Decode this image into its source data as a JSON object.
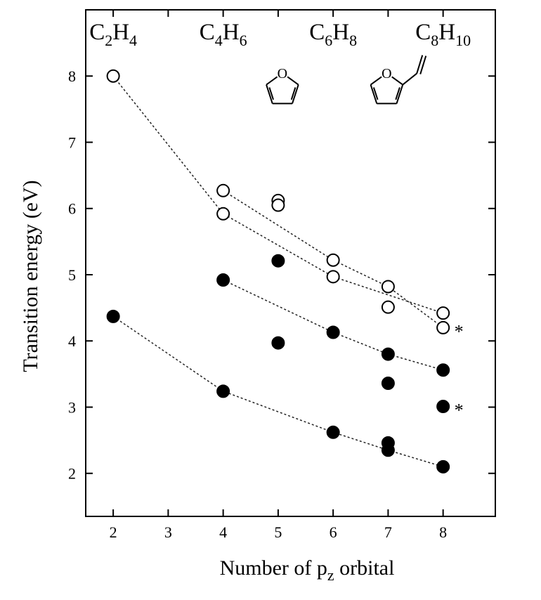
{
  "chart_data": {
    "type": "scatter",
    "xlabel": "Number of p",
    "xlabel_sub": "z",
    "xlabel_rest": " orbital",
    "ylabel": "Transition energy (eV)",
    "xlim": [
      1.5,
      8.95
    ],
    "ylim": [
      1.35,
      9.0
    ],
    "x_ticks": [
      2,
      3,
      4,
      5,
      6,
      7,
      8
    ],
    "y_ticks": [
      2,
      3,
      4,
      5,
      6,
      7,
      8
    ],
    "molecule_labels": [
      {
        "x": 2,
        "main": "C",
        "s1": "2",
        "mid": "H",
        "s2": "4"
      },
      {
        "x": 4,
        "main": "C",
        "s1": "4",
        "mid": "H",
        "s2": "6"
      },
      {
        "x": 6,
        "main": "C",
        "s1": "6",
        "mid": "H",
        "s2": "8"
      },
      {
        "x": 8,
        "main": "C",
        "s1": "8",
        "mid": "H",
        "s2": "10"
      }
    ],
    "structure_icons": [
      {
        "x": 5,
        "name": "furan-structure-icon"
      },
      {
        "x": 7,
        "name": "vinylfuran-structure-icon"
      }
    ],
    "series": [
      {
        "style": "open",
        "connected": true,
        "points": [
          [
            2,
            8.0
          ],
          [
            4,
            5.92
          ],
          [
            6,
            4.97
          ],
          [
            8,
            4.42
          ]
        ]
      },
      {
        "style": "open",
        "connected": true,
        "points": [
          [
            4,
            6.27
          ],
          [
            6,
            5.22
          ],
          [
            7,
            4.82
          ],
          [
            8,
            4.2
          ]
        ]
      },
      {
        "style": "filled",
        "connected": true,
        "points": [
          [
            4,
            4.92
          ],
          [
            6,
            4.13
          ],
          [
            7,
            3.8
          ],
          [
            8,
            3.56
          ]
        ]
      },
      {
        "style": "filled",
        "connected": true,
        "points": [
          [
            2,
            4.37
          ],
          [
            4,
            3.24
          ],
          [
            6,
            2.62
          ],
          [
            7,
            2.35
          ],
          [
            8,
            2.1
          ]
        ]
      },
      {
        "style": "open",
        "connected": false,
        "points": [
          [
            5,
            6.12
          ],
          [
            5,
            6.05
          ],
          [
            7,
            4.51
          ]
        ]
      },
      {
        "style": "filled",
        "connected": false,
        "points": [
          [
            5,
            5.21
          ],
          [
            5,
            3.97
          ],
          [
            7,
            3.36
          ],
          [
            7,
            2.46
          ],
          [
            8,
            3.01
          ]
        ]
      }
    ],
    "annotations": [
      {
        "x": 8,
        "y": 4.2,
        "text": "*"
      },
      {
        "x": 8,
        "y": 3.01,
        "text": "*"
      }
    ]
  }
}
